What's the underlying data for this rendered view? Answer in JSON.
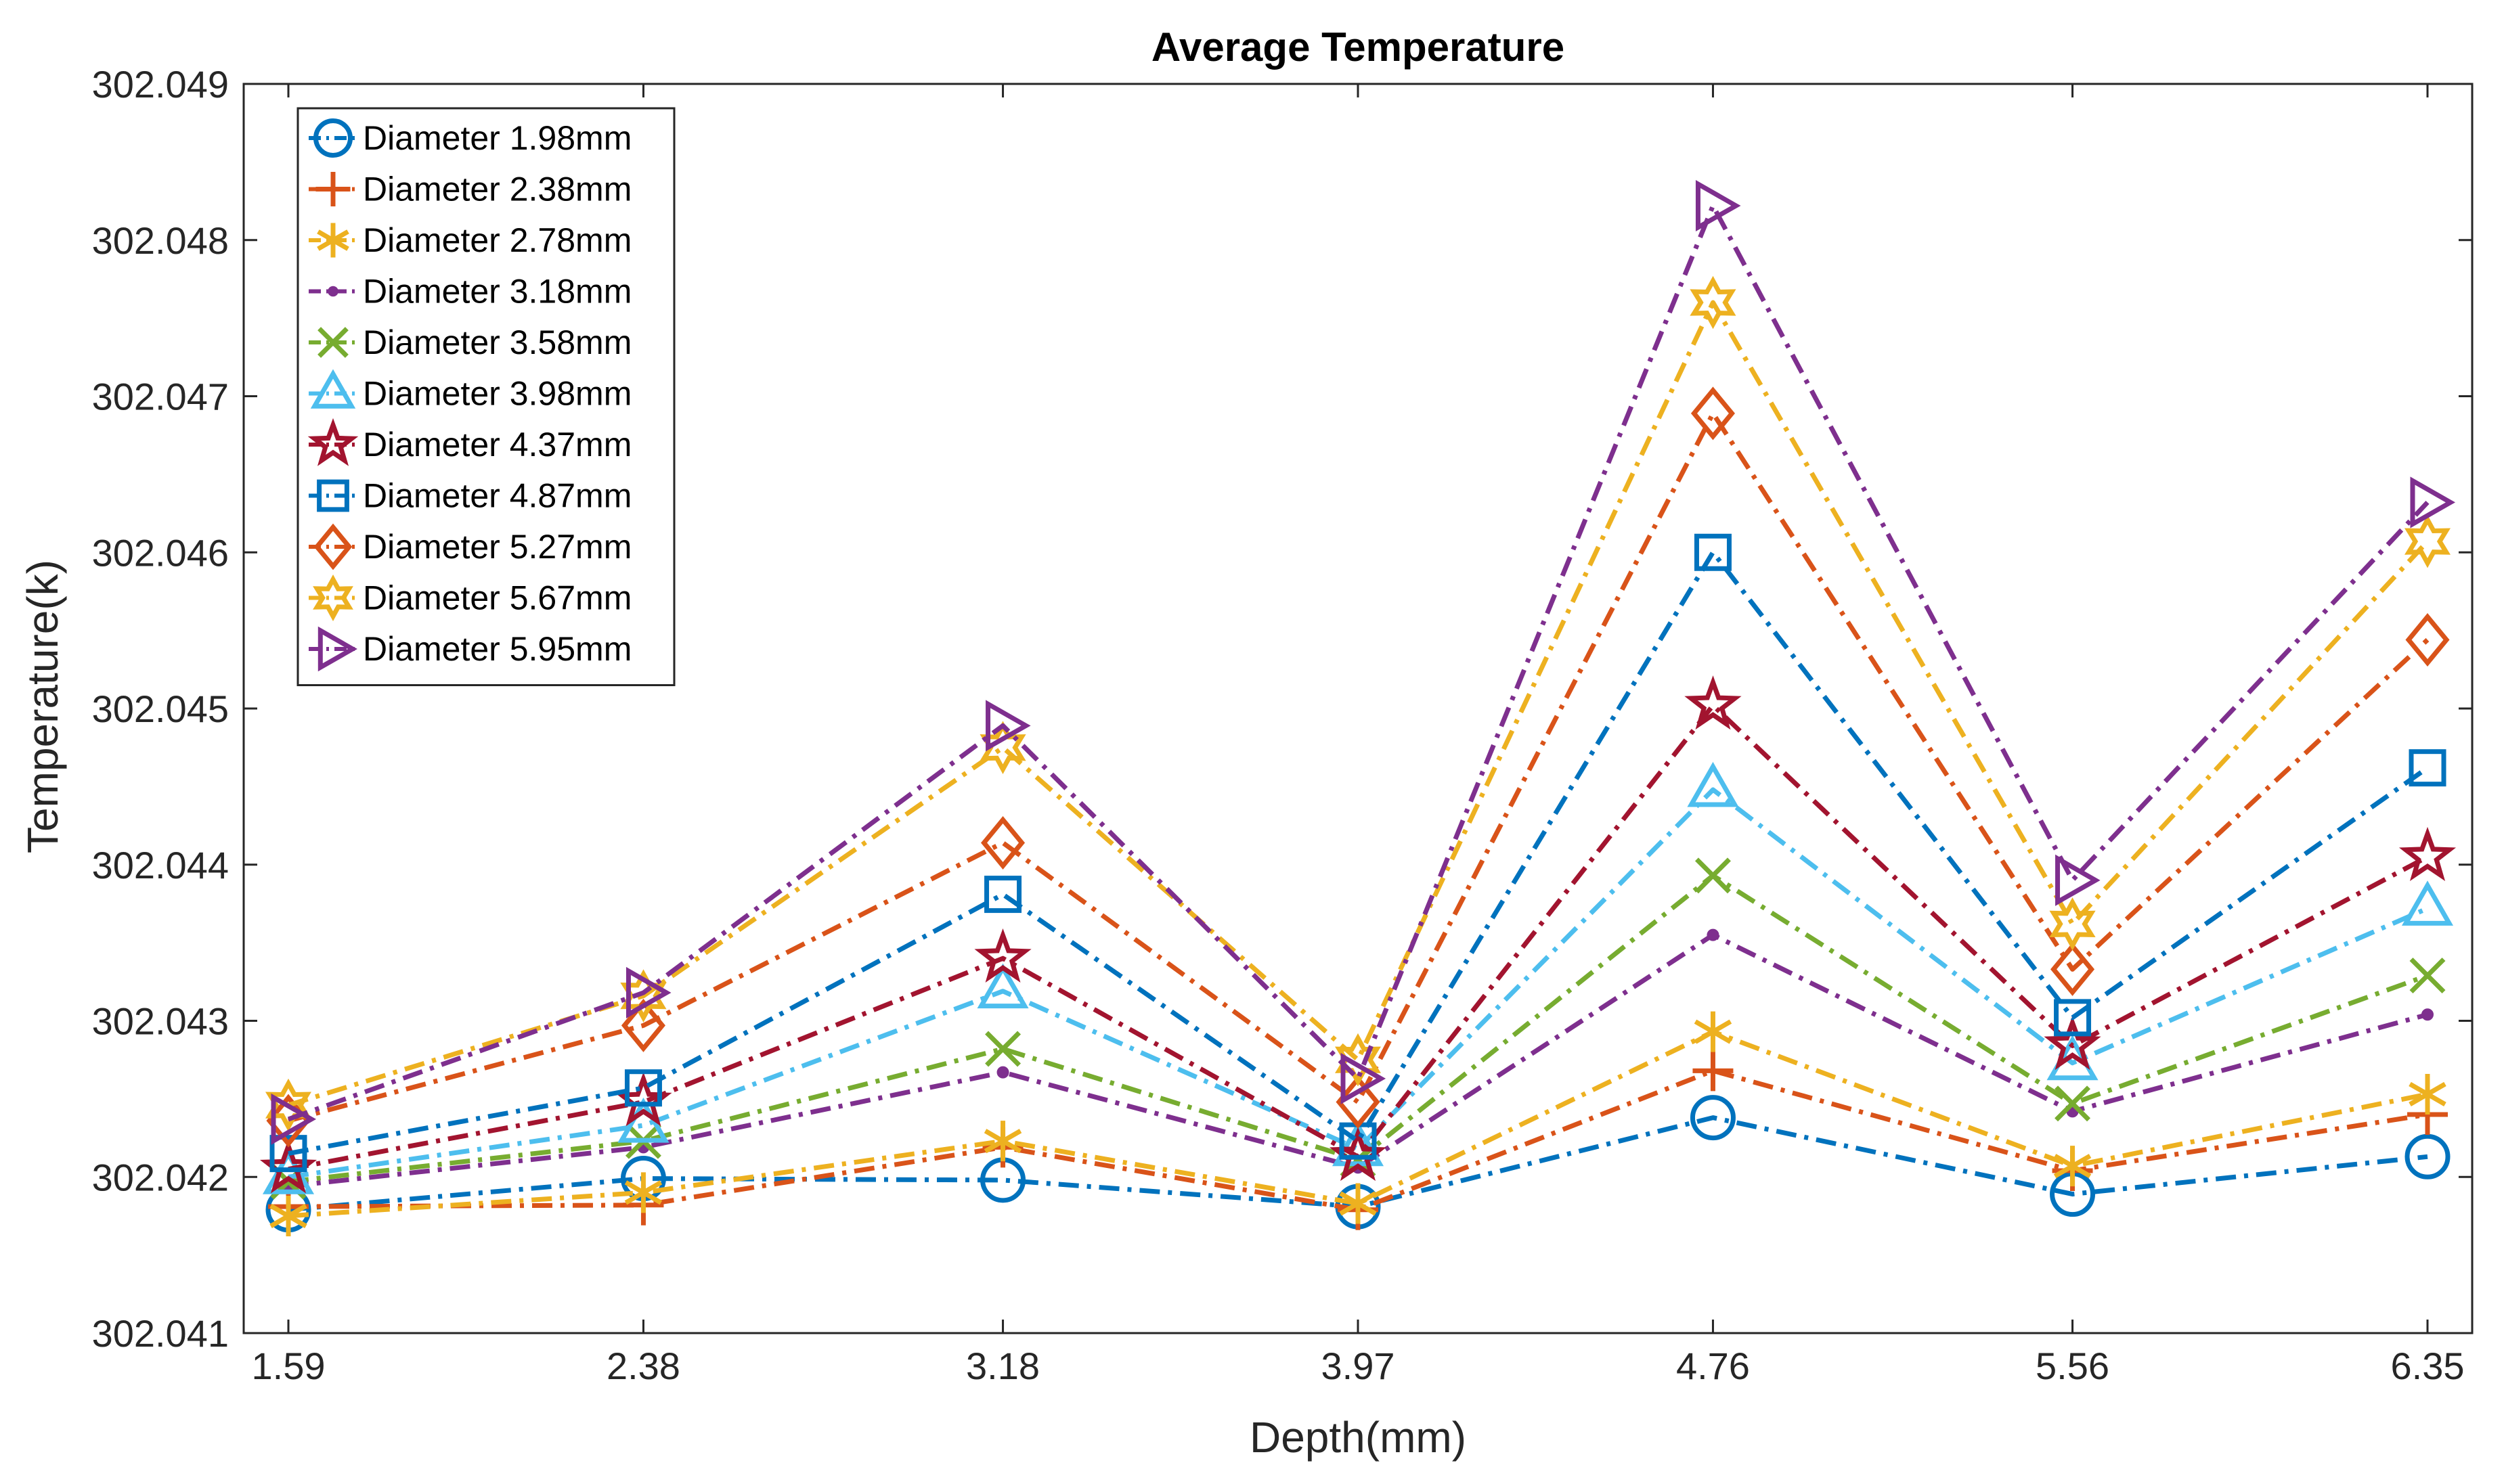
{
  "chart_data": {
    "type": "line",
    "title": "Average Temperature",
    "xlabel": "Depth(mm)",
    "ylabel": "Temperature(k)",
    "categories": [
      "1.59",
      "2.38",
      "3.18",
      "3.97",
      "4.76",
      "5.56",
      "6.35"
    ],
    "x": [
      1.59,
      2.38,
      3.18,
      3.97,
      4.76,
      5.56,
      6.35
    ],
    "ylim": [
      302.041,
      302.049
    ],
    "yticks": [
      "302.041",
      "302.042",
      "302.043",
      "302.044",
      "302.045",
      "302.046",
      "302.047",
      "302.048",
      "302.049"
    ],
    "grid": false,
    "legend_position": "top-left",
    "series": [
      {
        "name": "Diameter 1.98mm",
        "color": "#0072BD",
        "marker": "circle",
        "values": [
          302.04179,
          302.04199,
          302.04198,
          302.04181,
          302.04238,
          302.04189,
          302.04213
        ]
      },
      {
        "name": "Diameter 2.38mm",
        "color": "#D95319",
        "marker": "plus",
        "values": [
          302.04181,
          302.04182,
          302.04219,
          302.04179,
          302.04268,
          302.04204,
          302.0424
        ]
      },
      {
        "name": "Diameter 2.78mm",
        "color": "#EDB120",
        "marker": "asterisk",
        "values": [
          302.04175,
          302.0419,
          302.04223,
          302.04183,
          302.04293,
          302.04207,
          302.04253
        ]
      },
      {
        "name": "Diameter 3.18mm",
        "color": "#7E2F8E",
        "marker": "dot",
        "values": [
          302.04194,
          302.04219,
          302.04267,
          302.04206,
          302.04355,
          302.04242,
          302.04304
        ]
      },
      {
        "name": "Diameter 3.58mm",
        "color": "#77AC30",
        "marker": "x",
        "values": [
          302.04197,
          302.04223,
          302.04282,
          302.04211,
          302.04393,
          302.04247,
          302.04329
        ]
      },
      {
        "name": "Diameter 3.98mm",
        "color": "#4DBEEE",
        "marker": "triangle-up",
        "values": [
          302.042,
          302.04233,
          302.04319,
          302.04218,
          302.04448,
          302.04273,
          302.04372
        ]
      },
      {
        "name": "Diameter 4.37mm",
        "color": "#A2142F",
        "marker": "pentagram",
        "values": [
          302.04205,
          302.04248,
          302.0434,
          302.04213,
          302.04502,
          302.04284,
          302.04405
        ]
      },
      {
        "name": "Diameter 4.87mm",
        "color": "#0072BD",
        "marker": "square",
        "values": [
          302.04215,
          302.04257,
          302.04381,
          302.04223,
          302.046,
          302.04302,
          302.04462
        ]
      },
      {
        "name": "Diameter 5.27mm",
        "color": "#D95319",
        "marker": "diamond",
        "values": [
          302.04236,
          302.04297,
          302.04414,
          302.04248,
          302.04689,
          302.04333,
          302.04544
        ]
      },
      {
        "name": "Diameter 5.67mm",
        "color": "#EDB120",
        "marker": "hexagram",
        "values": [
          302.04246,
          302.04316,
          302.04475,
          302.04275,
          302.0476,
          302.04362,
          302.04607
        ]
      },
      {
        "name": "Diameter 5.95mm",
        "color": "#7E2F8E",
        "marker": "triangle-right",
        "values": [
          302.04237,
          302.04318,
          302.04489,
          302.04263,
          302.04822,
          302.0439,
          302.04632
        ]
      }
    ]
  }
}
